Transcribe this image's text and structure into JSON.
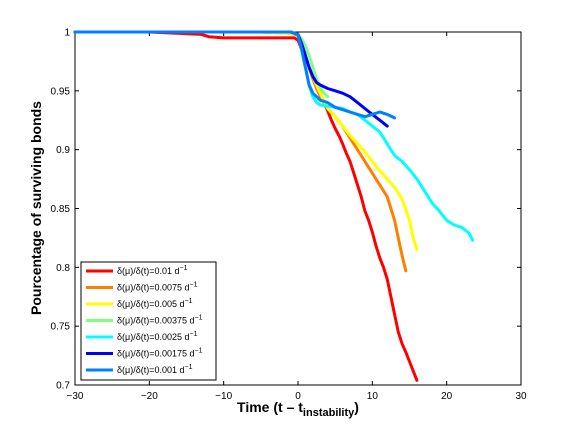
{
  "chart_data": {
    "type": "line",
    "xlabel": {
      "main": "Time (t – t",
      "sub": "instability",
      "close": ")"
    },
    "ylabel": "Pourcentage of surviving bonds",
    "xlim": [
      -30,
      30
    ],
    "ylim": [
      0.7,
      1.0
    ],
    "x_ticks": [
      -30,
      -20,
      -10,
      0,
      10,
      20,
      30
    ],
    "y_ticks": [
      0.7,
      0.75,
      0.8,
      0.85,
      0.9,
      0.95,
      1
    ],
    "x_tick_labels": [
      "−30",
      "−20",
      "−10",
      "0",
      "10",
      "20",
      "30"
    ],
    "y_tick_labels": [
      "0.7",
      "0.75",
      "0.8",
      "0.85",
      "0.9",
      "0.95",
      "1"
    ],
    "grid": false,
    "legend_position": "bottom-left",
    "series": [
      {
        "name": "δ(μ)/δ(t)=0.01 d",
        "sup": "−1",
        "color": "#ff0000",
        "x": [
          -30,
          -20,
          -13,
          -12,
          -10,
          -5,
          -0.5,
          0,
          0.5,
          1,
          1.5,
          2,
          2.5,
          3,
          3.5,
          4,
          4.5,
          5,
          5.5,
          6,
          6.5,
          7,
          7.5,
          8,
          8.5,
          9,
          9.5,
          10,
          10.5,
          11,
          11.5,
          12,
          12.5,
          13,
          13.5,
          14,
          14.5,
          15,
          15.5,
          16
        ],
        "y": [
          1.0,
          1.0,
          0.998,
          0.996,
          0.995,
          0.995,
          0.995,
          0.993,
          0.985,
          0.978,
          0.97,
          0.962,
          0.955,
          0.948,
          0.94,
          0.933,
          0.925,
          0.918,
          0.912,
          0.905,
          0.897,
          0.89,
          0.88,
          0.87,
          0.86,
          0.848,
          0.84,
          0.83,
          0.818,
          0.808,
          0.8,
          0.79,
          0.775,
          0.76,
          0.745,
          0.735,
          0.728,
          0.72,
          0.712,
          0.704
        ]
      },
      {
        "name": "δ(μ)/δ(t)=0.0075 d",
        "sup": "−1",
        "color": "#ff8000",
        "x": [
          -30,
          -20,
          -5,
          -1,
          0,
          0.5,
          1,
          1.5,
          2,
          2.5,
          3,
          4,
          5,
          6,
          7,
          8,
          9,
          10,
          11,
          12,
          12.5,
          13,
          13.5,
          14,
          14.5
        ],
        "y": [
          1.0,
          1.0,
          1.0,
          0.999,
          0.997,
          0.99,
          0.98,
          0.97,
          0.96,
          0.952,
          0.945,
          0.935,
          0.928,
          0.92,
          0.91,
          0.9,
          0.89,
          0.88,
          0.87,
          0.86,
          0.85,
          0.84,
          0.825,
          0.81,
          0.797
        ]
      },
      {
        "name": "δ(μ)/δ(t)=0.005 d",
        "sup": "−1",
        "color": "#ffff00",
        "x": [
          -30,
          -20,
          -5,
          -1,
          0,
          0.5,
          1,
          1.5,
          2,
          2.5,
          3,
          4,
          5,
          6,
          7,
          8,
          9,
          10,
          11,
          12,
          13,
          14,
          15,
          15.5,
          16
        ],
        "y": [
          1.0,
          1.0,
          1.0,
          0.999,
          0.998,
          0.99,
          0.98,
          0.97,
          0.962,
          0.955,
          0.948,
          0.935,
          0.928,
          0.92,
          0.912,
          0.905,
          0.898,
          0.89,
          0.882,
          0.875,
          0.868,
          0.858,
          0.84,
          0.825,
          0.815
        ]
      },
      {
        "name": "δ(μ)/δ(t)=0.00375 d",
        "sup": "−1",
        "color": "#80ff80",
        "x": [
          -30,
          -20,
          -5,
          -1,
          0,
          0.5,
          1,
          1.5,
          2,
          2.5,
          3,
          3.5,
          4
        ],
        "y": [
          1.0,
          1.0,
          1.0,
          1.0,
          0.998,
          0.994,
          0.988,
          0.98,
          0.97,
          0.96,
          0.953,
          0.948,
          0.945
        ]
      },
      {
        "name": "δ(μ)/δ(t)=0.0025 d",
        "sup": "−1",
        "color": "#00ffff",
        "x": [
          -30,
          -20,
          -5,
          -1,
          0,
          0.5,
          1,
          1.5,
          2,
          2.5,
          3,
          4,
          5,
          6,
          7,
          8,
          9,
          10,
          11,
          12,
          13,
          14,
          15,
          16,
          17,
          18,
          19,
          20,
          21,
          22,
          23,
          23.5
        ],
        "y": [
          1.0,
          1.0,
          1.0,
          1.0,
          0.998,
          0.985,
          0.97,
          0.955,
          0.945,
          0.94,
          0.938,
          0.937,
          0.936,
          0.935,
          0.932,
          0.93,
          0.925,
          0.92,
          0.915,
          0.905,
          0.895,
          0.89,
          0.883,
          0.875,
          0.865,
          0.855,
          0.848,
          0.84,
          0.836,
          0.834,
          0.829,
          0.823
        ]
      },
      {
        "name": "δ(μ)/δ(t)=0.00175 d",
        "sup": "−1",
        "color": "#0000ff",
        "x": [
          -30,
          -20,
          -5,
          -1,
          0,
          0.5,
          1,
          1.5,
          2,
          2.5,
          3,
          4,
          5,
          6,
          7,
          8,
          9,
          10,
          11,
          12
        ],
        "y": [
          1.0,
          1.0,
          1.0,
          1.0,
          0.998,
          0.99,
          0.98,
          0.97,
          0.962,
          0.957,
          0.955,
          0.952,
          0.95,
          0.948,
          0.945,
          0.94,
          0.935,
          0.93,
          0.925,
          0.92
        ]
      },
      {
        "name": "δ(μ)/δ(t)=0.001 d",
        "sup": "−1",
        "color": "#0080ff",
        "x": [
          -30,
          -20,
          -5,
          -1,
          0,
          0.5,
          1,
          1.5,
          2,
          2.5,
          3,
          4,
          5,
          6,
          7,
          8,
          9,
          10,
          11,
          12,
          13
        ],
        "y": [
          1.0,
          1.0,
          1.0,
          1.0,
          0.998,
          0.985,
          0.97,
          0.955,
          0.948,
          0.945,
          0.942,
          0.94,
          0.936,
          0.934,
          0.932,
          0.93,
          0.928,
          0.93,
          0.932,
          0.93,
          0.927
        ]
      }
    ]
  }
}
